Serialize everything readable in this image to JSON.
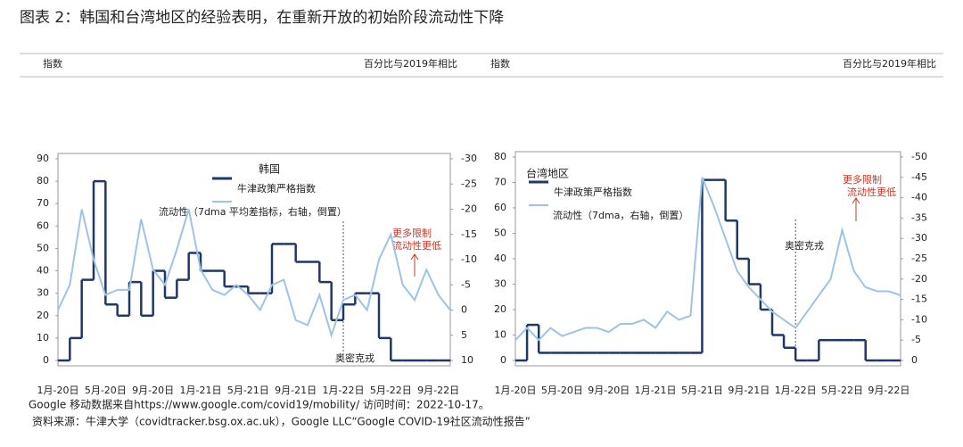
{
  "title": "图表 2：韩国和台湾地区的经验表明，在重新开放的初始阶段流动性下降",
  "notes": [
    "Google 移动数据来自https://www.google.com/covid19/mobility/ 访问时间：2022-10-17。",
    "资料来源：牛津大学（covidtracker.bsg.ox.ac.uk），Google LLC“Google COVID-19社区流动性报告”"
  ],
  "chart_data": [
    {
      "type": "line",
      "title": "韩国",
      "ylabel": "指数",
      "y2label": "百分比与2019年相比",
      "categories": [
        "1月-20日",
        null,
        null,
        null,
        "5月-20日",
        null,
        null,
        null,
        "9月-20日",
        null,
        null,
        null,
        "1月-21日",
        null,
        null,
        null,
        "5月-21日",
        null,
        null,
        null,
        "9月-21日",
        null,
        null,
        null,
        "1月-22日",
        null,
        null,
        null,
        "5月-22日",
        null,
        null,
        null,
        "9月-22日",
        null
      ],
      "ylim": [
        0,
        90
      ],
      "yticks": [
        0,
        10,
        20,
        30,
        40,
        50,
        60,
        70,
        80,
        90
      ],
      "y2lim": [
        10,
        -30
      ],
      "y2ticks": [
        -30,
        -25,
        -20,
        -15,
        -10,
        -5,
        0,
        5,
        10
      ],
      "annotations": [
        "奥密克戎",
        "更多限制",
        "流动性更低"
      ],
      "series": [
        {
          "name": "牛津政策严格指数",
          "color": "#1f3864",
          "drawstyle": "steps",
          "values": [
            0,
            10,
            36,
            80,
            25,
            20,
            35,
            20,
            40,
            28,
            36,
            48,
            40,
            40,
            33,
            33,
            30,
            30,
            52,
            52,
            44,
            44,
            35,
            18,
            25,
            30,
            30,
            10,
            0,
            0,
            0,
            0,
            0,
            0
          ]
        },
        {
          "name": "流动性（7dma 平均差指标，右轴，倒置）",
          "color": "#9dc3e6",
          "axis": "y2",
          "values": [
            0,
            -5,
            -20,
            -10,
            -3,
            -4,
            -4,
            -18,
            -8,
            -5,
            -12,
            -20,
            -8,
            -4,
            -3,
            -5,
            -3,
            0,
            -5,
            -6,
            2,
            3,
            -3,
            5,
            -2,
            -3,
            0,
            -10,
            -15,
            -5,
            -2,
            -8,
            -3,
            0
          ]
        }
      ]
    },
    {
      "type": "line",
      "title": "台湾地区",
      "ylabel": "指数",
      "y2label": "百分比与2019年相比",
      "categories": [
        "1月-20日",
        null,
        null,
        null,
        "5月-20日",
        null,
        null,
        null,
        "9月-20日",
        null,
        null,
        null,
        "1月-21日",
        null,
        null,
        null,
        "5月-21日",
        null,
        null,
        null,
        "9月-21日",
        null,
        null,
        null,
        "1月-22日",
        null,
        null,
        null,
        "5月-22日",
        null,
        null,
        null,
        "9月-22日",
        null
      ],
      "ylim": [
        0,
        80
      ],
      "yticks": [
        0,
        10,
        20,
        30,
        40,
        50,
        60,
        70,
        80
      ],
      "y2lim": [
        0,
        -50
      ],
      "y2ticks": [
        -50,
        -45,
        -40,
        -35,
        -30,
        -25,
        -20,
        -15,
        -10,
        -5,
        0
      ],
      "annotations": [
        "奥密克戎",
        "更多限制",
        "流动性更低"
      ],
      "series": [
        {
          "name": "牛津政策严格指数",
          "color": "#1f3864",
          "drawstyle": "steps",
          "values": [
            0,
            14,
            3,
            3,
            3,
            3,
            3,
            3,
            3,
            3,
            3,
            3,
            3,
            3,
            3,
            3,
            71,
            71,
            55,
            40,
            30,
            20,
            10,
            5,
            0,
            0,
            8,
            8,
            8,
            8,
            0,
            0,
            0,
            0
          ]
        },
        {
          "name": "流动性（7dma，右轴，倒置）",
          "color": "#9dc3e6",
          "axis": "y2",
          "values": [
            -5,
            -8,
            -5,
            -8,
            -6,
            -7,
            -8,
            -8,
            -7,
            -9,
            -9,
            -10,
            -8,
            -12,
            -10,
            -11,
            -45,
            -38,
            -30,
            -22,
            -18,
            -15,
            -12,
            -10,
            -8,
            -12,
            -16,
            -20,
            -32,
            -22,
            -18,
            -17,
            -17,
            -16
          ]
        }
      ]
    }
  ]
}
